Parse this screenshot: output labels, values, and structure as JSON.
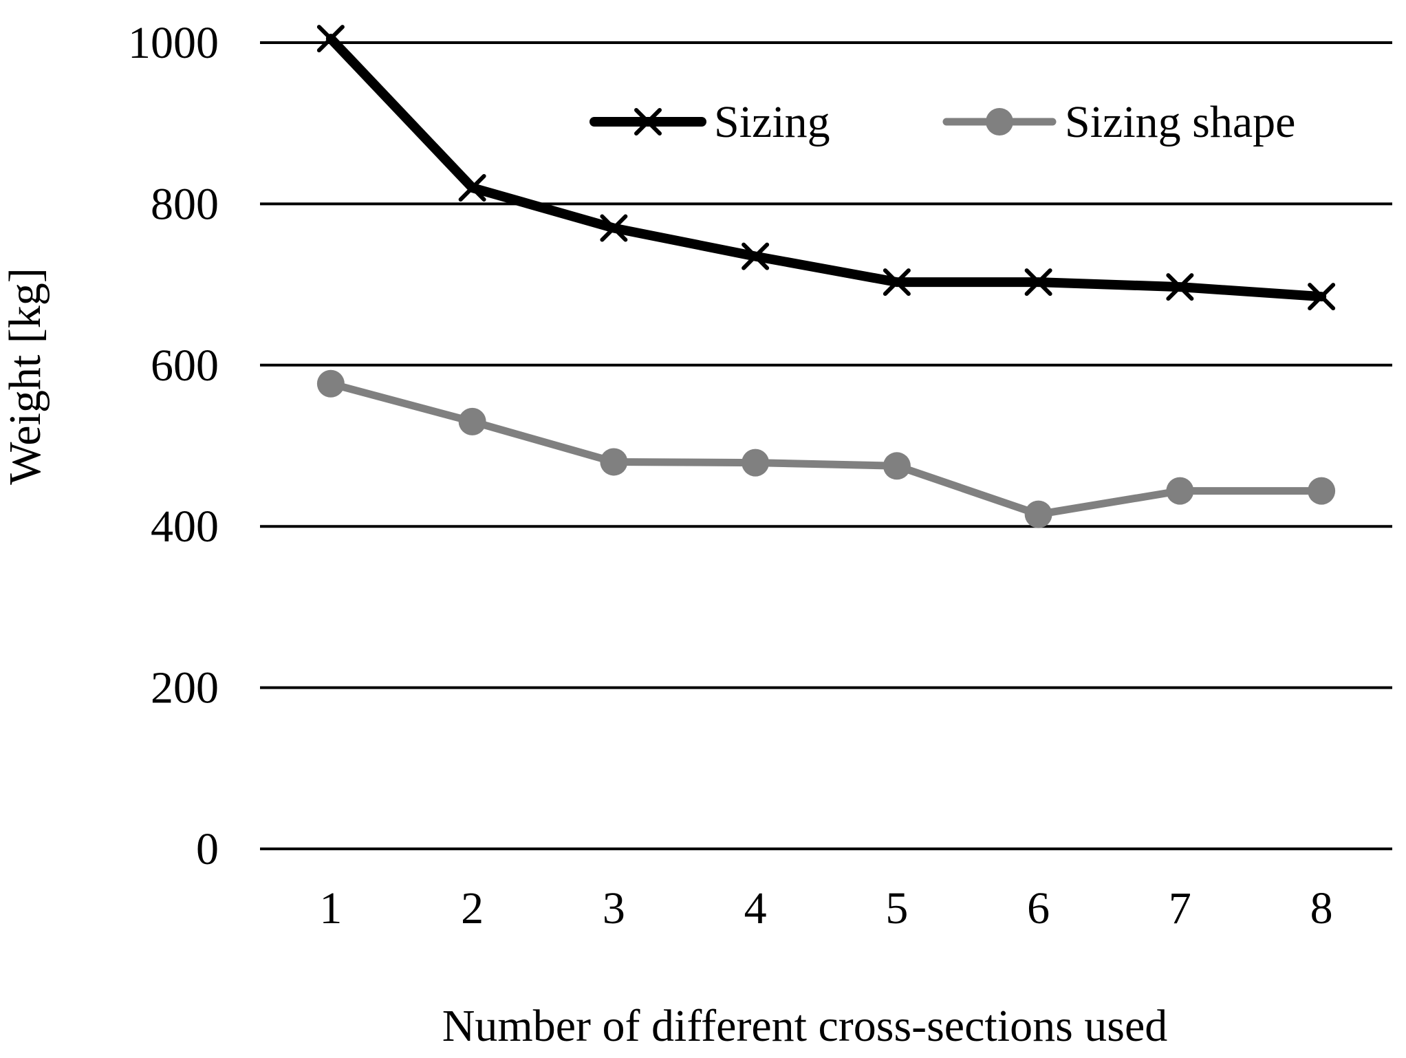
{
  "chart_data": {
    "type": "line",
    "title": "",
    "xlabel": "Number of different cross-sections used",
    "ylabel": "Weight [kg]",
    "categories": [
      "1",
      "2",
      "3",
      "4",
      "5",
      "6",
      "7",
      "8"
    ],
    "ylim": [
      0,
      1000
    ],
    "yticks": [
      0,
      200,
      400,
      600,
      800,
      1000
    ],
    "grid": "horizontal",
    "legend_position": "top-right",
    "series": [
      {
        "name": "Sizing",
        "marker": "x",
        "color": "#000000",
        "values": [
          1005,
          820,
          770,
          735,
          703,
          703,
          697,
          685
        ]
      },
      {
        "name": "Sizing shape",
        "marker": "circle",
        "color": "#808080",
        "values": [
          577,
          530,
          480,
          479,
          475,
          415,
          444,
          444
        ]
      }
    ]
  }
}
